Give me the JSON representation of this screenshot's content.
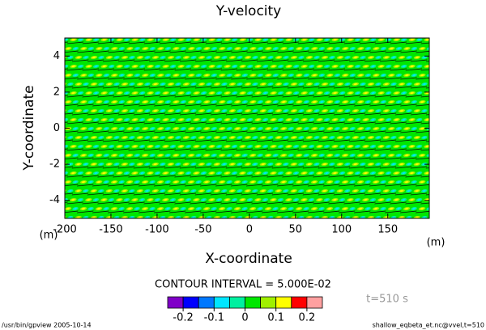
{
  "chart_data": {
    "type": "contour",
    "title": "Y-velocity",
    "xlabel": "X-coordinate",
    "ylabel": "Y-coordinate",
    "xunit": "(m)",
    "yunit": "(m)",
    "xlim": [
      -200,
      195
    ],
    "xticks": [
      -200,
      -150,
      -100,
      -50,
      0,
      50,
      100,
      150
    ],
    "ylim": [
      -5,
      5
    ],
    "yticks": [
      -4,
      -2,
      0,
      2,
      4
    ],
    "contour_interval": "CONTOUR INTERVAL = 5.000E-02",
    "time_label": "t=510 s",
    "colorbar": {
      "levels": [
        -0.25,
        -0.2,
        -0.15,
        -0.1,
        -0.05,
        0,
        0.05,
        0.1,
        0.15,
        0.2,
        0.25
      ],
      "colors": [
        "#8000c8",
        "#0000ff",
        "#0078ff",
        "#00e6ff",
        "#00f0a0",
        "#00e600",
        "#a0f000",
        "#ffff00",
        "#ff0000",
        "#ffa0a0"
      ],
      "ticks": [
        -0.2,
        -0.1,
        0,
        0.1,
        0.2
      ]
    },
    "footer_left": "/usr/bin/gpview  2005-10-14",
    "footer_right": "shallow_eqbeta_et.nc@vvel,t=510"
  }
}
